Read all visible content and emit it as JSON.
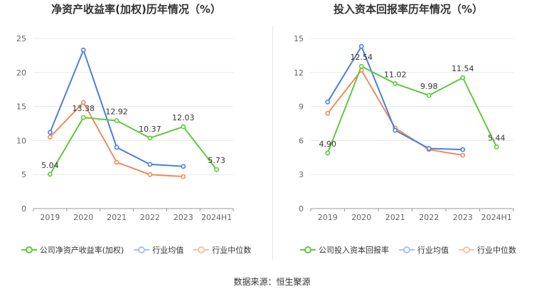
{
  "source_text": "数据来源：恒生聚源",
  "chart_data": [
    {
      "type": "line",
      "title": "净资产收益率(加权)历年情况（%）",
      "categories": [
        "2019",
        "2020",
        "2021",
        "2022",
        "2023",
        "2024H1"
      ],
      "ylim": [
        0,
        25
      ],
      "yticks": [
        0,
        5,
        10,
        15,
        20,
        25
      ],
      "grid": true,
      "legend_position": "bottom",
      "series": [
        {
          "name": "公司净资产收益率(加权)",
          "color": "#5fc93a",
          "values": [
            5.04,
            13.38,
            12.92,
            10.37,
            12.03,
            5.73
          ],
          "labels": [
            "5.04",
            "13.38",
            "12.92",
            "10.37",
            "12.03",
            "5.73"
          ]
        },
        {
          "name": "行业均值",
          "color": "#4a7fe0",
          "values": [
            11.2,
            23.3,
            9.0,
            6.5,
            6.2,
            null
          ],
          "labels": []
        },
        {
          "name": "行业中位数",
          "color": "#f08a5d",
          "values": [
            10.5,
            15.6,
            6.8,
            5.0,
            4.7,
            null
          ],
          "labels": []
        }
      ]
    },
    {
      "type": "line",
      "title": "投入资本回报率历年情况（%）",
      "categories": [
        "2019",
        "2020",
        "2021",
        "2022",
        "2023",
        "2024H1"
      ],
      "ylim": [
        0,
        15
      ],
      "yticks": [
        0,
        3,
        6,
        9,
        12,
        15
      ],
      "grid": true,
      "legend_position": "bottom",
      "series": [
        {
          "name": "公司投入资本回报率",
          "color": "#5fc93a",
          "values": [
            4.9,
            12.54,
            11.02,
            9.98,
            11.54,
            5.44
          ],
          "labels": [
            "4.90",
            "12.54",
            "11.02",
            "9.98",
            "11.54",
            "5.44"
          ]
        },
        {
          "name": "行业均值",
          "color": "#4a7fe0",
          "values": [
            9.4,
            14.3,
            6.9,
            5.3,
            5.2,
            null
          ],
          "labels": []
        },
        {
          "name": "行业中位数",
          "color": "#f08a5d",
          "values": [
            8.4,
            12.2,
            7.1,
            5.2,
            4.7,
            null
          ],
          "labels": []
        }
      ]
    }
  ]
}
